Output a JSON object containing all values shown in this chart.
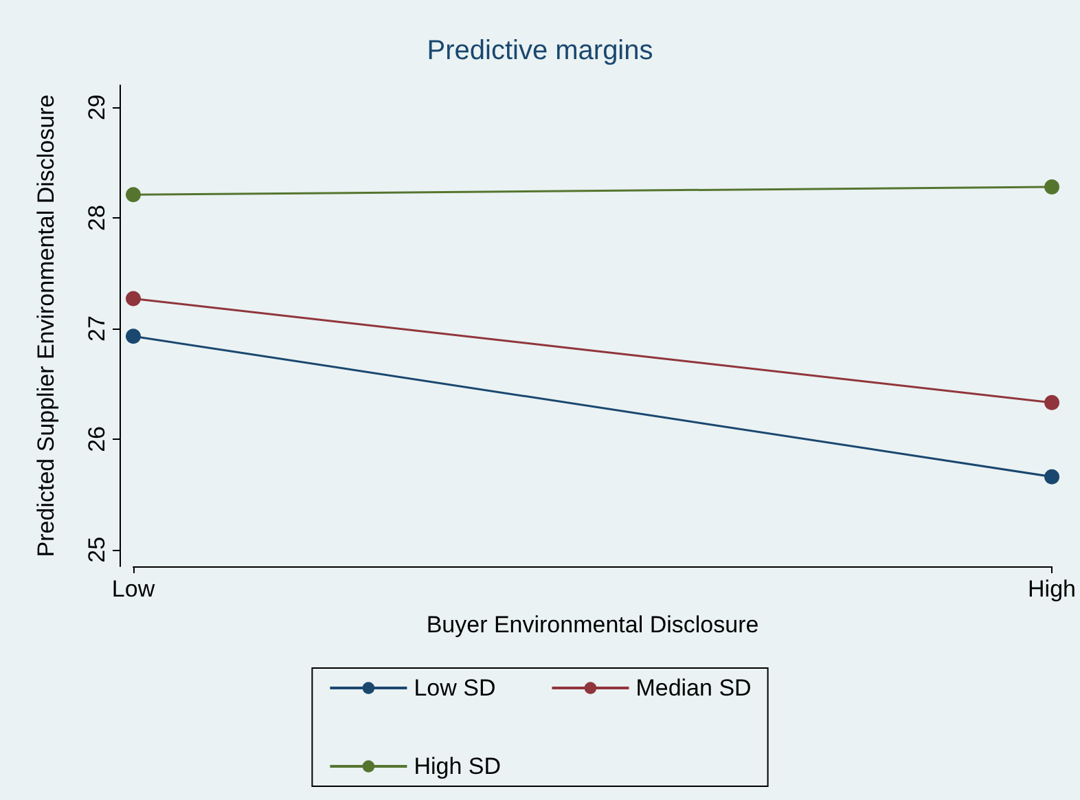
{
  "chart_data": {
    "type": "line",
    "title": "Predictive margins",
    "xlabel": "Buyer Environmental Disclosure",
    "ylabel": "Predicted Supplier Environmental Disclosure",
    "categories": [
      "Low",
      "High"
    ],
    "series": [
      {
        "name": "Low SD",
        "color": "#1a476f",
        "values": [
          26.93,
          25.66
        ]
      },
      {
        "name": "Median SD",
        "color": "#90353b",
        "values": [
          27.27,
          26.33
        ]
      },
      {
        "name": "High SD",
        "color": "#55752f",
        "values": [
          28.21,
          28.28
        ]
      }
    ],
    "ylim": [
      24.85,
      29.2
    ],
    "yticks": [
      25,
      26,
      27,
      28,
      29
    ],
    "grid": false,
    "legend": "bottom",
    "marker": "circle"
  }
}
